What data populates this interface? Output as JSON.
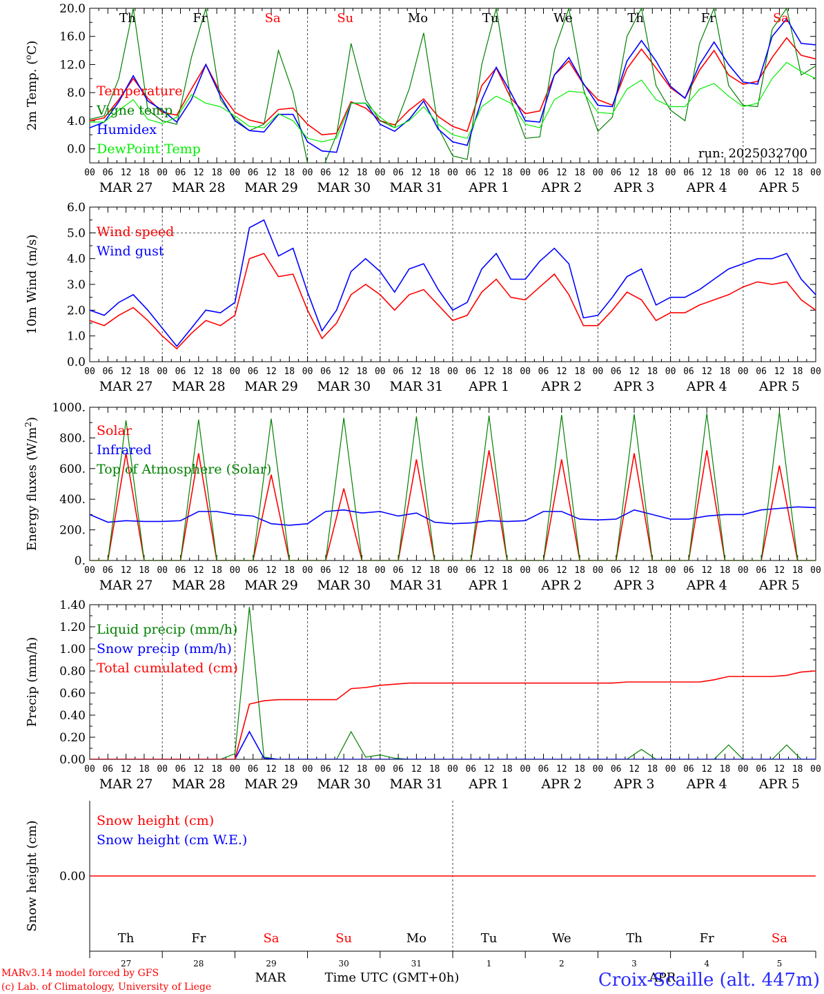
{
  "footer": {
    "model_line": "MARv3.14 model forced by GFS",
    "credit_line": "(c) Lab. of Climatology, University of Liege",
    "station": "Croix-Scaille (alt. 447m)",
    "time_axis_label": "Time UTC (GMT+0h)",
    "month_left": "MAR",
    "month_right": "APR"
  },
  "x_hour_labels": [
    "00",
    "06",
    "12",
    "18"
  ],
  "days": [
    {
      "weekday": "Th",
      "date": "MAR 27",
      "daynum": "27",
      "weekend": false
    },
    {
      "weekday": "Fr",
      "date": "MAR 28",
      "daynum": "28",
      "weekend": false
    },
    {
      "weekday": "Sa",
      "date": "MAR 29",
      "daynum": "29",
      "weekend": true
    },
    {
      "weekday": "Su",
      "date": "MAR 30",
      "daynum": "30",
      "weekend": true
    },
    {
      "weekday": "Mo",
      "date": "MAR 31",
      "daynum": "31",
      "weekend": false
    },
    {
      "weekday": "Tu",
      "date": "APR 1",
      "daynum": "1",
      "weekend": false
    },
    {
      "weekday": "We",
      "date": "APR 2",
      "daynum": "2",
      "weekend": false
    },
    {
      "weekday": "Th",
      "date": "APR 3",
      "daynum": "3",
      "weekend": false
    },
    {
      "weekday": "Fr",
      "date": "APR 4",
      "daynum": "4",
      "weekend": false
    },
    {
      "weekday": "Sa",
      "date": "APR 5",
      "daynum": "5",
      "weekend": true
    }
  ],
  "colors": {
    "red": "#ff0000",
    "blue": "#0000ff",
    "green": "#008000",
    "lightgreen": "#00ee00",
    "axis": "#000000",
    "grid": "#444444"
  },
  "chart_data": [
    {
      "type": "line",
      "ylabel": "2m Temp. (oC)",
      "ylabel_superscript": "o",
      "ylim": [
        -2,
        20
      ],
      "yticks": [
        "20.0",
        "16.0",
        "12.0",
        "8.0",
        "4.0",
        "0.0"
      ],
      "annotation": "run: 2025032700",
      "x_step_hours": 6,
      "series": [
        {
          "name": "Temperature",
          "color": "#ff0000",
          "values": [
            4.0,
            4.4,
            7.0,
            10.0,
            7.2,
            5.2,
            4.8,
            8.5,
            12.0,
            8.0,
            5.2,
            4.1,
            3.6,
            5.6,
            5.8,
            3.5,
            2.0,
            2.2,
            6.7,
            5.8,
            4.0,
            3.4,
            5.5,
            7.1,
            4.6,
            3.2,
            2.5,
            9.0,
            11.5,
            7.2,
            5.0,
            5.4,
            10.5,
            12.5,
            9.2,
            7.0,
            6.2,
            11.4,
            14.2,
            11.5,
            8.7,
            7.2,
            11.2,
            14.0,
            10.5,
            9.2,
            9.6,
            13.0,
            15.8,
            13.3,
            12.8
          ]
        },
        {
          "name": "Vigne temp",
          "color": "#008000",
          "values": [
            4.2,
            4.7,
            10.0,
            20.0,
            5.5,
            4.0,
            3.5,
            13.0,
            20.0,
            7.0,
            4.3,
            2.6,
            3.5,
            14.0,
            8.0,
            -2.0,
            -3.0,
            2.0,
            15.0,
            7.0,
            4.0,
            3.0,
            8.5,
            16.5,
            3.0,
            -1.0,
            -1.5,
            12.0,
            20.0,
            7.0,
            1.5,
            1.7,
            14.0,
            20.0,
            8.5,
            2.5,
            4.5,
            16.0,
            20.0,
            9.0,
            5.5,
            4.0,
            15.0,
            20.0,
            9.0,
            6.2,
            6.0,
            17.0,
            20.0,
            10.5,
            11.8
          ]
        },
        {
          "name": "Humidex",
          "color": "#0000ff",
          "values": [
            3.0,
            3.8,
            6.7,
            10.4,
            6.8,
            5.5,
            3.8,
            7.0,
            12.0,
            7.5,
            4.0,
            2.6,
            2.4,
            4.9,
            4.9,
            1.0,
            -0.3,
            -0.5,
            6.5,
            6.5,
            3.5,
            2.5,
            4.2,
            6.8,
            2.8,
            1.0,
            0.5,
            7.0,
            11.6,
            8.0,
            4.0,
            3.8,
            10.5,
            13.0,
            9.3,
            6.2,
            6.0,
            12.5,
            15.4,
            12.5,
            8.9,
            7.2,
            12.0,
            15.2,
            12.0,
            9.5,
            9.2,
            16.0,
            18.5,
            15.0,
            14.8
          ]
        },
        {
          "name": "DewPoint Temp",
          "color": "#00ee00",
          "values": [
            3.8,
            3.8,
            5.5,
            7.0,
            4.2,
            3.6,
            4.5,
            7.7,
            6.5,
            6.0,
            4.7,
            3.2,
            3.0,
            5.0,
            4.0,
            1.5,
            1.0,
            1.5,
            6.5,
            6.5,
            4.5,
            3.0,
            4.0,
            6.0,
            3.5,
            2.0,
            1.5,
            6.0,
            7.5,
            6.5,
            3.5,
            3.0,
            7.0,
            8.2,
            8.0,
            5.2,
            5.0,
            8.5,
            9.8,
            7.0,
            6.0,
            6.0,
            8.5,
            9.3,
            7.5,
            6.0,
            6.5,
            10.0,
            12.3,
            11.0,
            10.0
          ]
        }
      ]
    },
    {
      "type": "line",
      "ylabel": "10m Wind (m/s)",
      "ylim": [
        0,
        6
      ],
      "yticks": [
        "6.0",
        "5.0",
        "4.0",
        "3.0",
        "2.0",
        "1.0",
        "0.0"
      ],
      "hline": 5.0,
      "x_step_hours": 6,
      "series": [
        {
          "name": "Wind speed",
          "color": "#ff0000",
          "values": [
            1.6,
            1.4,
            1.8,
            2.1,
            1.6,
            1.0,
            0.5,
            1.1,
            1.6,
            1.4,
            1.8,
            4.0,
            4.2,
            3.3,
            3.4,
            2.0,
            0.9,
            1.5,
            2.6,
            3.0,
            2.6,
            2.0,
            2.6,
            2.8,
            2.2,
            1.6,
            1.8,
            2.7,
            3.2,
            2.5,
            2.4,
            2.9,
            3.4,
            2.6,
            1.4,
            1.4,
            2.0,
            2.7,
            2.4,
            1.6,
            1.9,
            1.9,
            2.2,
            2.4,
            2.6,
            2.9,
            3.1,
            3.0,
            3.1,
            2.4,
            2.0
          ]
        },
        {
          "name": "Wind gust",
          "color": "#0000ff",
          "values": [
            2.0,
            1.8,
            2.3,
            2.6,
            2.0,
            1.3,
            0.6,
            1.3,
            2.0,
            1.9,
            2.3,
            5.2,
            5.5,
            4.1,
            4.4,
            2.7,
            1.2,
            2.0,
            3.5,
            4.0,
            3.5,
            2.7,
            3.6,
            3.8,
            2.8,
            2.0,
            2.3,
            3.6,
            4.2,
            3.2,
            3.2,
            3.9,
            4.4,
            3.8,
            1.7,
            1.8,
            2.5,
            3.3,
            3.6,
            2.2,
            2.5,
            2.5,
            2.8,
            3.2,
            3.6,
            3.8,
            4.0,
            4.0,
            4.2,
            3.2,
            2.6
          ]
        }
      ]
    },
    {
      "type": "line",
      "ylabel": "Energy fluxes (W/m2)",
      "ylabel_superscript": "2",
      "ylim": [
        0,
        1000
      ],
      "yticks": [
        "1000.",
        "800.",
        "600.",
        "400.",
        "200.",
        "0."
      ],
      "x_step_hours": 6,
      "series": [
        {
          "name": "Solar",
          "color": "#ff0000",
          "values": [
            0,
            0,
            700,
            0,
            0,
            0,
            700,
            0,
            0,
            0,
            560,
            0,
            0,
            0,
            470,
            0,
            0,
            0,
            660,
            0,
            0,
            0,
            720,
            0,
            0,
            0,
            660,
            0,
            0,
            0,
            700,
            0,
            0,
            0,
            720,
            0,
            0,
            0,
            620,
            0,
            0
          ]
        },
        {
          "name": "Infrared",
          "color": "#0000ff",
          "values": [
            300,
            250,
            260,
            255,
            255,
            260,
            320,
            320,
            300,
            290,
            240,
            230,
            240,
            320,
            330,
            310,
            320,
            290,
            310,
            250,
            240,
            245,
            260,
            255,
            260,
            320,
            320,
            270,
            265,
            270,
            330,
            300,
            270,
            270,
            290,
            300,
            300,
            330,
            340,
            350,
            345
          ]
        },
        {
          "name": "Top of Atmosphere (Solar)",
          "color": "#008000",
          "values": [
            0,
            0,
            915,
            0,
            0,
            0,
            920,
            0,
            0,
            0,
            925,
            0,
            0,
            0,
            930,
            0,
            0,
            0,
            940,
            0,
            0,
            0,
            945,
            0,
            0,
            0,
            950,
            0,
            0,
            0,
            955,
            0,
            0,
            0,
            960,
            0,
            0,
            0,
            970,
            0,
            0
          ]
        }
      ]
    },
    {
      "type": "line",
      "ylabel": "Precip (mm/h)",
      "ylim": [
        0,
        1.4
      ],
      "yticks": [
        "1.40",
        "1.20",
        "1.00",
        "0.80",
        "0.60",
        "0.40",
        "0.20",
        "0.00"
      ],
      "x_step_hours": 6,
      "series": [
        {
          "name": "Liquid precip (mm/h)",
          "color": "#008000",
          "values": [
            0,
            0,
            0,
            0,
            0,
            0,
            0,
            0,
            0,
            0,
            0.05,
            1.38,
            0.02,
            0,
            0,
            0,
            0,
            0,
            0.25,
            0.02,
            0.04,
            0.01,
            0,
            0,
            0,
            0,
            0,
            0,
            0,
            0,
            0,
            0,
            0,
            0,
            0,
            0,
            0,
            0,
            0.09,
            0,
            0,
            0,
            0,
            0,
            0.13,
            0,
            0,
            0,
            0.13,
            0,
            0
          ]
        },
        {
          "name": "Snow precip (mm/h)",
          "color": "#0000ff",
          "values": [
            0,
            0,
            0,
            0,
            0,
            0,
            0,
            0,
            0,
            0,
            0,
            0.25,
            0.01,
            0,
            0,
            0,
            0,
            0,
            0,
            0,
            0,
            0,
            0,
            0,
            0,
            0,
            0,
            0,
            0,
            0,
            0,
            0,
            0,
            0,
            0,
            0,
            0,
            0,
            0,
            0,
            0,
            0,
            0,
            0,
            0,
            0,
            0,
            0,
            0,
            0,
            0
          ]
        },
        {
          "name": "Total cumulated (cm)",
          "color": "#ff0000",
          "values": [
            0,
            0,
            0,
            0,
            0,
            0,
            0,
            0,
            0,
            0,
            0,
            0.5,
            0.53,
            0.54,
            0.54,
            0.54,
            0.54,
            0.54,
            0.64,
            0.65,
            0.67,
            0.68,
            0.69,
            0.69,
            0.69,
            0.69,
            0.69,
            0.69,
            0.69,
            0.69,
            0.69,
            0.69,
            0.69,
            0.69,
            0.69,
            0.69,
            0.69,
            0.7,
            0.7,
            0.7,
            0.7,
            0.7,
            0.7,
            0.72,
            0.75,
            0.75,
            0.75,
            0.75,
            0.76,
            0.79,
            0.8
          ]
        }
      ]
    },
    {
      "type": "line",
      "ylabel": "Snow height (cm)",
      "ylim": [
        -1,
        1
      ],
      "yticks": [
        "0.00"
      ],
      "x_step_hours": 6,
      "series": [
        {
          "name": "Snow height (cm)",
          "color": "#ff0000",
          "values": [
            0,
            0
          ]
        },
        {
          "name": "Snow height (cm W.E.)",
          "color": "#0000ff",
          "values": []
        }
      ]
    }
  ]
}
